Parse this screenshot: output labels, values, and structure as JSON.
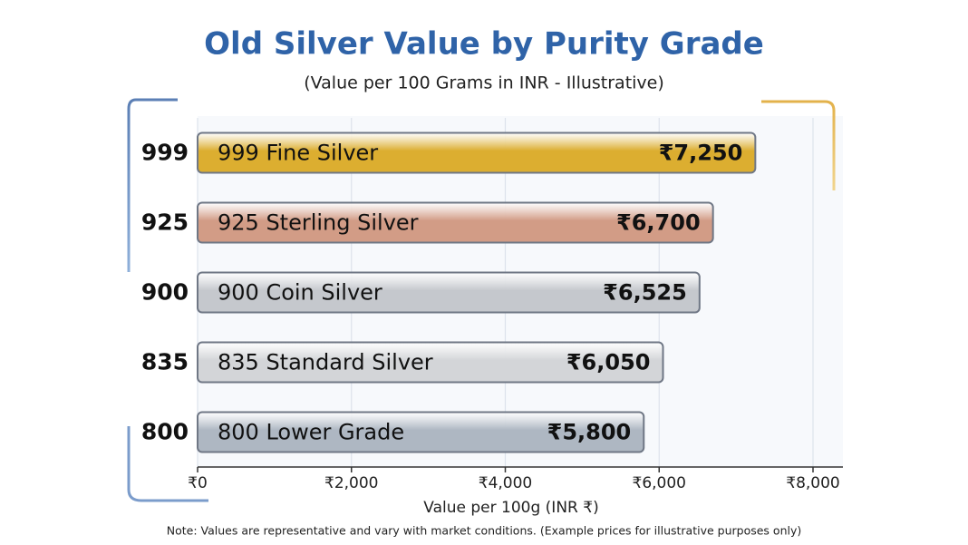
{
  "chart_data": {
    "type": "bar",
    "orientation": "horizontal",
    "title": "Old Silver Value by Purity Grade",
    "subtitle": "(Value per 100 Grams in INR - Illustrative)",
    "categories": [
      "999",
      "925",
      "900",
      "835",
      "800"
    ],
    "bar_labels": [
      "999 Fine Silver",
      "925 Sterling Silver",
      "900 Coin Silver",
      "835 Standard Silver",
      "800 Lower Grade"
    ],
    "values": [
      7250,
      6700,
      6525,
      6050,
      5800
    ],
    "value_labels": [
      "₹7,250",
      "₹6,700",
      "₹6,525",
      "₹6,050",
      "₹5,800"
    ],
    "colors": [
      "#dcae30",
      "#d29c86",
      "#c5c8cd",
      "#d3d5d8",
      "#aeb7c2"
    ],
    "xlim": [
      0,
      8000
    ],
    "xticks": [
      {
        "value": 0,
        "label": "₹0"
      },
      {
        "value": 2000,
        "label": "₹2,000"
      },
      {
        "value": 4000,
        "label": "₹4,000"
      },
      {
        "value": 6000,
        "label": "₹6,000"
      },
      {
        "value": 8000,
        "label": "₹8,000"
      }
    ],
    "xlabel": "Value per 100g (INR ₹)",
    "note": "Note: Values are representative and vary with market conditions. (Example prices for illustrative purposes only)",
    "grid": true
  }
}
